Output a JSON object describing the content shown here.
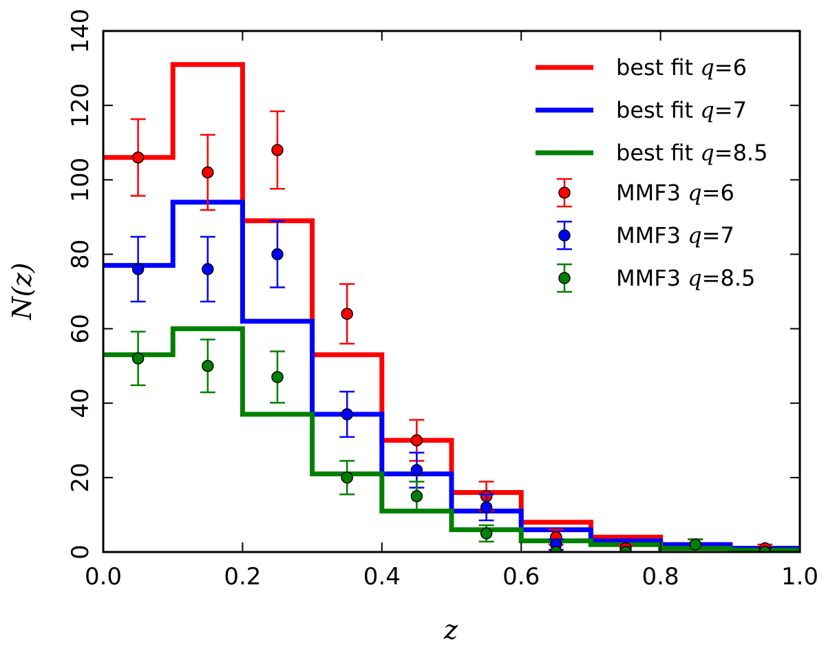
{
  "chart_data": {
    "type": "histogram-with-errorbars",
    "title": "",
    "xlabel": "z",
    "ylabel": "N(z)",
    "xlim": [
      0.0,
      1.0
    ],
    "ylim": [
      0,
      140
    ],
    "x_ticks": [
      0.0,
      0.2,
      0.4,
      0.6,
      0.8,
      1.0
    ],
    "x_tick_labels": [
      "0.0",
      "0.2",
      "0.4",
      "0.6",
      "0.8",
      "1.0"
    ],
    "y_ticks": [
      0,
      20,
      40,
      60,
      80,
      100,
      120,
      140
    ],
    "y_tick_labels": [
      "0",
      "20",
      "40",
      "60",
      "80",
      "100",
      "120",
      "140"
    ],
    "bin_edges": [
      0.0,
      0.1,
      0.2,
      0.3,
      0.4,
      0.5,
      0.6,
      0.7,
      0.8,
      0.9,
      1.0
    ],
    "bin_centers": [
      0.05,
      0.15,
      0.25,
      0.35,
      0.45,
      0.55,
      0.65,
      0.75,
      0.85,
      0.95
    ],
    "step_series": [
      {
        "name_prefix": "best fit ",
        "q": "6",
        "color": "#ff0000",
        "values": [
          106,
          131,
          89,
          53,
          30,
          16,
          8,
          4,
          2,
          1
        ]
      },
      {
        "name_prefix": "best fit ",
        "q": "7",
        "color": "#0000ff",
        "values": [
          77,
          94,
          62,
          37,
          21,
          11,
          6,
          3,
          2,
          1
        ]
      },
      {
        "name_prefix": "best fit ",
        "q": "8.5",
        "color": "#008000",
        "values": [
          53,
          60,
          37,
          21,
          11,
          6,
          3,
          2,
          1,
          0.5
        ]
      }
    ],
    "point_series": [
      {
        "name_prefix": "MMF3 ",
        "q": "6",
        "color": "#ff0000",
        "values": [
          106,
          102,
          108,
          64,
          30,
          15,
          4,
          1,
          2,
          1
        ],
        "errors": [
          10.3,
          10.1,
          10.4,
          8.0,
          5.5,
          3.9,
          2.0,
          1.0,
          1.4,
          1.0
        ]
      },
      {
        "name_prefix": "MMF3 ",
        "q": "7",
        "color": "#0000ff",
        "values": [
          76,
          76,
          80,
          37,
          22,
          12,
          2,
          0,
          2,
          0
        ],
        "errors": [
          8.7,
          8.7,
          8.9,
          6.1,
          4.7,
          3.5,
          1.4,
          0,
          1.4,
          0
        ]
      },
      {
        "name_prefix": "MMF3 ",
        "q": "8.5",
        "color": "#008000",
        "values": [
          52,
          50,
          47,
          20,
          15,
          5,
          0,
          0,
          2,
          0
        ],
        "errors": [
          7.2,
          7.1,
          6.9,
          4.5,
          3.9,
          2.2,
          0,
          0,
          1.4,
          0
        ]
      }
    ],
    "legend_position": "upper-right"
  }
}
